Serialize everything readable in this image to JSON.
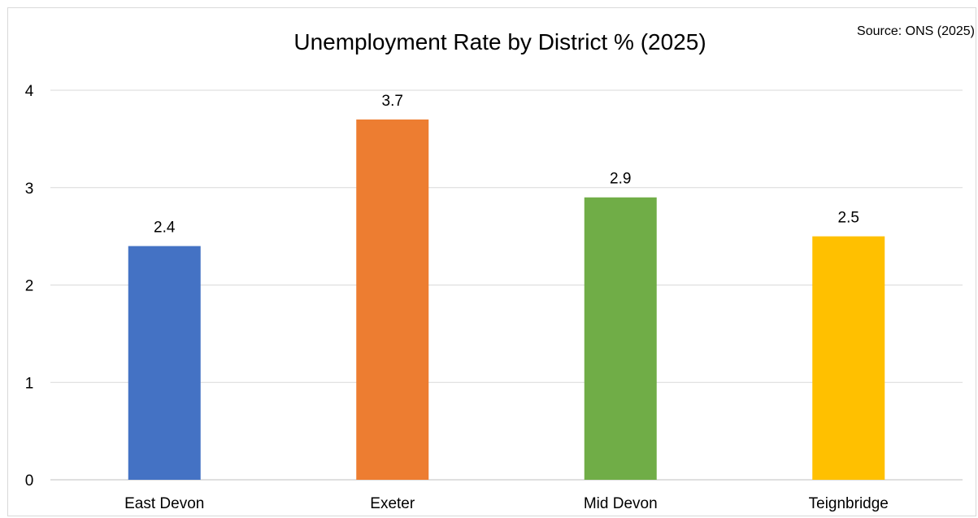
{
  "chart_data": {
    "type": "bar",
    "title": "Unemployment Rate by District % (2025)",
    "source": "Source: ONS (2025)",
    "categories": [
      "East Devon",
      "Exeter",
      "Mid Devon",
      "Teignbridge"
    ],
    "values": [
      2.4,
      3.7,
      2.9,
      2.5
    ],
    "colors": [
      "#4472c4",
      "#ed7d31",
      "#70ad47",
      "#ffc000"
    ],
    "ylim": [
      0,
      4
    ],
    "yticks": [
      0,
      1,
      2,
      3,
      4
    ],
    "grid": true,
    "xlabel": "",
    "ylabel": ""
  }
}
